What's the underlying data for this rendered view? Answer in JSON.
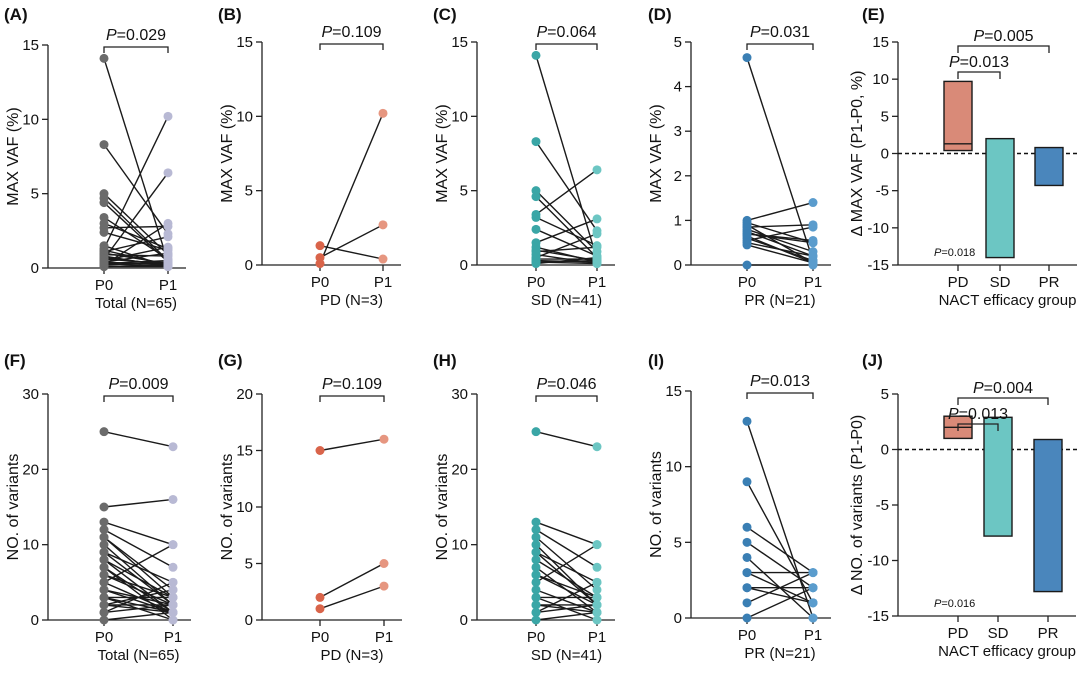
{
  "colors": {
    "total": "#6b6b6b",
    "total_p1": "#b8b9d4",
    "pd": "#d9644a",
    "pd_p1": "#e69680",
    "sd": "#3aa6a6",
    "sd_p1": "#6cc6c3",
    "pr": "#3a7fb4",
    "pr_p1": "#5a9ccd",
    "pd_box": "#d98a78",
    "sd_box": "#6cc6c3",
    "pr_box": "#4a86bc"
  },
  "chart_data": [
    {
      "id": "A",
      "type": "paired-dot",
      "label": "(A)",
      "ylabel": "MAX VAF (%)",
      "ylim": [
        0,
        15
      ],
      "yticks": [
        "0",
        "5",
        "10",
        "15"
      ],
      "yticks_v": [
        0,
        5,
        10,
        15
      ],
      "xticks": [
        "P0",
        "P1"
      ],
      "xlabel": "Total (N=65)",
      "pvalue": "P=0.029",
      "palette": [
        "total",
        "total_p1"
      ],
      "pairs": [
        [
          14.1,
          0.4
        ],
        [
          8.3,
          2.3
        ],
        [
          5.0,
          0.9
        ],
        [
          4.7,
          0.5
        ],
        [
          4.4,
          0.4
        ],
        [
          3.4,
          0.6
        ],
        [
          3.0,
          1.3
        ],
        [
          2.7,
          2.8
        ],
        [
          2.4,
          1.2
        ],
        [
          1.5,
          0.1
        ],
        [
          1.3,
          10.2
        ],
        [
          1.2,
          0.2
        ],
        [
          1.1,
          2.1
        ],
        [
          1.0,
          0.3
        ],
        [
          0.9,
          0.8
        ],
        [
          0.8,
          0.1
        ],
        [
          0.7,
          0.2
        ],
        [
          0.6,
          6.4
        ],
        [
          0.5,
          1.4
        ],
        [
          0.4,
          0.2
        ],
        [
          0.3,
          0.1
        ],
        [
          0.2,
          0.4
        ],
        [
          0.2,
          3.0
        ],
        [
          0.1,
          0.2
        ],
        [
          0.1,
          0.1
        ],
        [
          0.3,
          0.5
        ],
        [
          0.6,
          0.3
        ],
        [
          0.4,
          1.0
        ]
      ]
    },
    {
      "id": "B",
      "type": "paired-dot",
      "label": "(B)",
      "ylabel": "MAX VAF (%)",
      "ylim": [
        0,
        15
      ],
      "yticks": [
        "0",
        "5",
        "10",
        "15"
      ],
      "yticks_v": [
        0,
        5,
        10,
        15
      ],
      "xticks": [
        "P0",
        "P1"
      ],
      "xlabel": "PD (N=3)",
      "pvalue": "P=0.109",
      "palette": [
        "pd",
        "pd_p1"
      ],
      "pairs": [
        [
          1.3,
          0.4
        ],
        [
          0.5,
          2.7
        ],
        [
          0.1,
          10.2
        ]
      ]
    },
    {
      "id": "C",
      "type": "paired-dot",
      "label": "(C)",
      "ylabel": "MAX VAF (%)",
      "ylim": [
        0,
        15
      ],
      "yticks": [
        "0",
        "5",
        "10",
        "15"
      ],
      "yticks_v": [
        0,
        5,
        10,
        15
      ],
      "xticks": [
        "P0",
        "P1"
      ],
      "xlabel": "SD (N=41)",
      "pvalue": "P=0.064",
      "palette": [
        "sd",
        "sd_p1"
      ],
      "pairs": [
        [
          14.1,
          0.4
        ],
        [
          8.3,
          2.3
        ],
        [
          5.0,
          0.9
        ],
        [
          4.6,
          0.5
        ],
        [
          3.4,
          6.4
        ],
        [
          3.2,
          1.3
        ],
        [
          2.4,
          0.6
        ],
        [
          1.5,
          3.1
        ],
        [
          1.2,
          0.2
        ],
        [
          1.0,
          0.3
        ],
        [
          0.9,
          1.2
        ],
        [
          0.7,
          0.1
        ],
        [
          0.5,
          2.1
        ],
        [
          0.4,
          0.4
        ],
        [
          0.3,
          0.2
        ],
        [
          0.2,
          0.1
        ],
        [
          0.1,
          0.5
        ],
        [
          0.2,
          0.3
        ]
      ]
    },
    {
      "id": "D",
      "type": "paired-dot",
      "label": "(D)",
      "ylabel": "MAX VAF (%)",
      "ylim": [
        0,
        5
      ],
      "yticks": [
        "0",
        "1",
        "2",
        "3",
        "4",
        "5"
      ],
      "yticks_v": [
        0,
        1,
        2,
        3,
        4,
        5
      ],
      "xticks": [
        "P0",
        "P1"
      ],
      "xlabel": "PR (N=21)",
      "pvalue": "P=0.031",
      "palette": [
        "pr",
        "pr_p1"
      ],
      "pairs": [
        [
          4.65,
          0.1
        ],
        [
          1.0,
          1.4
        ],
        [
          0.95,
          0.5
        ],
        [
          0.9,
          0.05
        ],
        [
          0.85,
          0.9
        ],
        [
          0.8,
          0.3
        ],
        [
          0.75,
          0.2
        ],
        [
          0.7,
          0.5
        ],
        [
          0.65,
          0.05
        ],
        [
          0.6,
          0.1
        ],
        [
          0.55,
          0.85
        ],
        [
          0.5,
          0.2
        ],
        [
          0.45,
          0.05
        ],
        [
          0.0,
          0.0
        ],
        [
          0.7,
          0.55
        ]
      ]
    },
    {
      "id": "E",
      "type": "floating-bar",
      "label": "(E)",
      "ylabel": "Δ MAX VAF (P1-P0, %)",
      "ylim": [
        -15,
        15
      ],
      "yticks": [
        "-15",
        "-10",
        "-5",
        "0",
        "5",
        "10",
        "15"
      ],
      "yticks_v": [
        -15,
        -10,
        -5,
        0,
        5,
        10,
        15
      ],
      "categories": [
        "PD",
        "SD",
        "PR"
      ],
      "xlabel": "NACT efficacy group",
      "bars": [
        {
          "min": 0.4,
          "max": 9.7,
          "median": 1.3,
          "color": "pd_box"
        },
        {
          "min": -14.0,
          "max": 2.0,
          "median": null,
          "color": "sd_box"
        },
        {
          "min": -4.3,
          "max": 0.8,
          "median": null,
          "color": "pr_box"
        }
      ],
      "comparisons": [
        {
          "from": 0,
          "to": 1,
          "label": "P=0.013",
          "level": 1
        },
        {
          "from": 0,
          "to": 2,
          "label": "P=0.005",
          "level": 2
        }
      ],
      "overall": "P=0.018"
    },
    {
      "id": "F",
      "type": "paired-dot",
      "label": "(F)",
      "ylabel": "NO. of variants",
      "ylim": [
        0,
        30
      ],
      "yticks": [
        "0",
        "10",
        "20",
        "30"
      ],
      "yticks_v": [
        0,
        10,
        20,
        30
      ],
      "xticks": [
        "P0",
        "P1"
      ],
      "xlabel": "Total (N=65)",
      "pvalue": "P=0.009",
      "palette": [
        "total",
        "total_p1"
      ],
      "pairs": [
        [
          25,
          23
        ],
        [
          15,
          16
        ],
        [
          13,
          10
        ],
        [
          12,
          7
        ],
        [
          11,
          4
        ],
        [
          10,
          2
        ],
        [
          9,
          5
        ],
        [
          8,
          3
        ],
        [
          7,
          1
        ],
        [
          6,
          2
        ],
        [
          5,
          10
        ],
        [
          4,
          1
        ],
        [
          3,
          3
        ],
        [
          2,
          2
        ],
        [
          1,
          5
        ],
        [
          2,
          1
        ],
        [
          3,
          0
        ],
        [
          4,
          2
        ],
        [
          5,
          1
        ],
        [
          6,
          3
        ],
        [
          7,
          0
        ],
        [
          8,
          1
        ],
        [
          1,
          2
        ],
        [
          0,
          1
        ],
        [
          9,
          2
        ],
        [
          11,
          3
        ],
        [
          2,
          4
        ],
        [
          3,
          1
        ]
      ]
    },
    {
      "id": "G",
      "type": "paired-dot",
      "label": "(G)",
      "ylabel": "NO. of variants",
      "ylim": [
        0,
        20
      ],
      "yticks": [
        "0",
        "5",
        "10",
        "15",
        "20"
      ],
      "yticks_v": [
        0,
        5,
        10,
        15,
        20
      ],
      "xticks": [
        "P0",
        "P1"
      ],
      "xlabel": "PD (N=3)",
      "pvalue": "P=0.109",
      "palette": [
        "pd",
        "pd_p1"
      ],
      "pairs": [
        [
          15,
          16
        ],
        [
          2,
          5
        ],
        [
          1,
          3
        ]
      ]
    },
    {
      "id": "H",
      "type": "paired-dot",
      "label": "(H)",
      "ylabel": "NO. of variants",
      "ylim": [
        0,
        30
      ],
      "yticks": [
        "0",
        "10",
        "20",
        "30"
      ],
      "yticks_v": [
        0,
        10,
        20,
        30
      ],
      "xticks": [
        "P0",
        "P1"
      ],
      "xlabel": "SD (N=41)",
      "pvalue": "P=0.046",
      "palette": [
        "sd",
        "sd_p1"
      ],
      "pairs": [
        [
          25,
          23
        ],
        [
          13,
          10
        ],
        [
          12,
          7
        ],
        [
          11,
          4
        ],
        [
          10,
          2
        ],
        [
          9,
          5
        ],
        [
          8,
          3
        ],
        [
          7,
          1
        ],
        [
          6,
          2
        ],
        [
          5,
          10
        ],
        [
          4,
          1
        ],
        [
          3,
          3
        ],
        [
          2,
          2
        ],
        [
          1,
          5
        ],
        [
          2,
          1
        ],
        [
          3,
          0
        ],
        [
          6,
          3
        ],
        [
          1,
          2
        ],
        [
          0,
          1
        ],
        [
          9,
          2
        ]
      ]
    },
    {
      "id": "I",
      "type": "paired-dot",
      "label": "(I)",
      "ylabel": "NO. of variants",
      "ylim": [
        0,
        15
      ],
      "yticks": [
        "0",
        "5",
        "10",
        "15"
      ],
      "yticks_v": [
        0,
        5,
        10,
        15
      ],
      "xticks": [
        "P0",
        "P1"
      ],
      "xlabel": "PR (N=21)",
      "pvalue": "P=0.013",
      "palette": [
        "pr",
        "pr_p1"
      ],
      "pairs": [
        [
          13,
          0
        ],
        [
          9,
          1
        ],
        [
          6,
          3
        ],
        [
          5,
          2
        ],
        [
          4,
          0
        ],
        [
          3,
          3
        ],
        [
          2,
          2
        ],
        [
          2,
          1
        ],
        [
          1,
          3
        ],
        [
          0,
          2
        ],
        [
          3,
          1
        ]
      ]
    },
    {
      "id": "J",
      "type": "floating-bar",
      "label": "(J)",
      "ylabel": "Δ NO. of variants (P1-P0)",
      "ylim": [
        -15,
        5
      ],
      "yticks": [
        "-15",
        "-10",
        "-5",
        "0",
        "5"
      ],
      "yticks_v": [
        -15,
        -10,
        -5,
        0,
        5
      ],
      "categories": [
        "PD",
        "SD",
        "PR"
      ],
      "xlabel": "NACT efficacy group",
      "bars": [
        {
          "min": 1.0,
          "max": 3.0,
          "median": 2.0,
          "color": "pd_box"
        },
        {
          "min": -7.8,
          "max": 2.9,
          "median": null,
          "color": "sd_box"
        },
        {
          "min": -12.8,
          "max": 0.9,
          "median": null,
          "color": "pr_box"
        }
      ],
      "comparisons": [
        {
          "from": 0,
          "to": 1,
          "label": "P=0.013",
          "level": 1
        },
        {
          "from": 0,
          "to": 2,
          "label": "P=0.004",
          "level": 2
        }
      ],
      "overall": "P=0.016"
    }
  ]
}
